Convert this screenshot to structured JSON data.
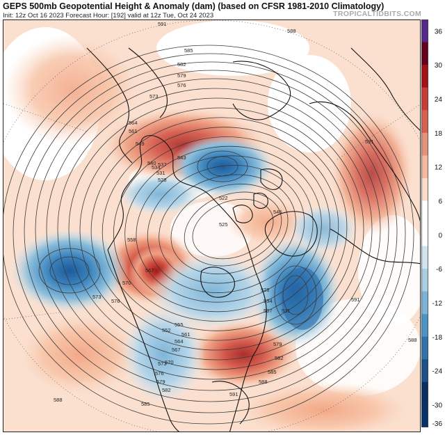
{
  "header": {
    "title": "GEPS 500mb Geopotential Height & Anomaly (dam) (based on CFSR 1981-2010 Climatology)",
    "subtitle": "Init: 12z Oct 16 2023   Forecast Hour: [192]   valid at 12z Tue, Oct 24 2023",
    "brand": "TROPICALTIDBITS.COM"
  },
  "colorbar": {
    "ticks": [
      "36",
      "30",
      "24",
      "18",
      "12",
      "6",
      "0",
      "-6",
      "-12",
      "-18",
      "-24",
      "-30",
      "-36"
    ],
    "colors": [
      "#54278f",
      "#67001f",
      "#a50f15",
      "#c73d34",
      "#d6604d",
      "#e8917a",
      "#f4b89d",
      "#fcdcc8",
      "#ffffff",
      "#ffffff",
      "#cfe4ef",
      "#a8cfe3",
      "#7bb4d6",
      "#4b94c6",
      "#2f72ad",
      "#1d4f8a",
      "#0c2f63",
      "#08306b"
    ]
  },
  "map": {
    "contour_labels": [
      "591",
      "588",
      "585",
      "582",
      "579",
      "576",
      "573",
      "570",
      "567",
      "564",
      "561",
      "558",
      "555",
      "552",
      "549",
      "546",
      "543",
      "540",
      "537",
      "534",
      "531",
      "528",
      "525",
      "522"
    ],
    "label_texts": {
      "l591a": "591",
      "l588a": "588",
      "l585a": "585",
      "l582a": "582",
      "l579a": "579",
      "l576a": "576",
      "l573a": "573",
      "l564a": "564",
      "l561a": "561",
      "l549a": "549",
      "l543a": "543",
      "l540a": "540",
      "l537a": "537",
      "l534a": "534",
      "l531a": "531",
      "l528a": "528",
      "l525a": "525",
      "l522a": "522",
      "l546a": "546",
      "l558a": "558",
      "l567a": "567",
      "l570a": "570",
      "l573b": "573",
      "l576b": "576",
      "l585b": "585",
      "l588b": "588",
      "l591b": "591",
      "l582b": "582",
      "l579b": "579",
      "l576c": "576",
      "l573c": "573",
      "l570b": "570",
      "l567b": "567",
      "l564b": "564",
      "l561b": "561",
      "l555a": "555",
      "l552a": "552",
      "l531b": "531",
      "l528b": "528",
      "l534b": "534",
      "l537b": "537",
      "l585c": "585",
      "l588c": "588",
      "l591c": "591",
      "l588d": "588",
      "l591d": "591",
      "l582c": "582",
      "l579c": "579"
    }
  }
}
